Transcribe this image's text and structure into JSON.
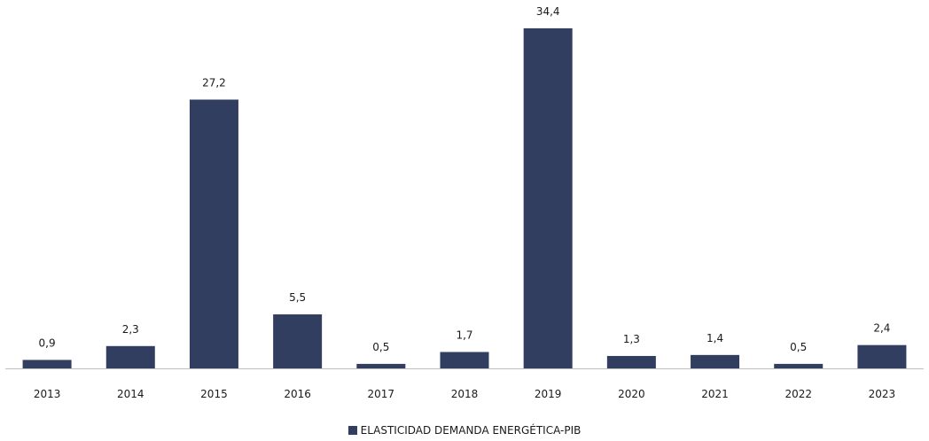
{
  "chart_data": {
    "type": "bar",
    "categories": [
      "2013",
      "2014",
      "2015",
      "2016",
      "2017",
      "2018",
      "2019",
      "2020",
      "2021",
      "2022",
      "2023"
    ],
    "series": [
      {
        "name": "ELASTICIDAD DEMANDA ENERGÉTICA-PIB",
        "values": [
          0.9,
          2.3,
          27.2,
          5.5,
          0.5,
          1.7,
          34.4,
          1.3,
          1.4,
          0.5,
          2.4
        ]
      }
    ],
    "data_labels": [
      "0,9",
      "2,3",
      "27,2",
      "5,5",
      "0,5",
      "1,7",
      "34,4",
      "1,3",
      "1,4",
      "0,5",
      "2,4"
    ],
    "ylim": [
      0,
      34.4
    ],
    "grid": false,
    "legend_position": "bottom-center",
    "colors": {
      "bar": "#323e5f",
      "axis": "#bfbfbf",
      "text": "#1a1a1a"
    }
  }
}
